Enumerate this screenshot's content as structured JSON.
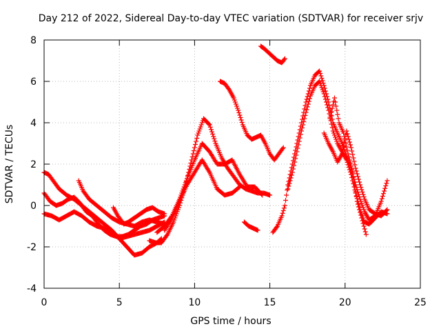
{
  "chart_data": {
    "type": "scatter",
    "title": "Day 212 of 2022, Sidereal Day-to-day VTEC variation (SDTVAR) for receiver srjv",
    "xlabel": "GPS time / hours",
    "ylabel": "SDTVAR / TECUs",
    "xlim": [
      0,
      25
    ],
    "ylim": [
      -4,
      8
    ],
    "xticks": [
      0,
      5,
      10,
      15,
      20,
      25
    ],
    "yticks": [
      -4,
      -2,
      0,
      2,
      4,
      6,
      8
    ],
    "grid": true,
    "marker": "+",
    "color": "#ff0000",
    "series": [
      {
        "name": "track-1",
        "x": [
          0.0,
          0.4,
          0.8,
          1.2,
          1.6,
          2.0,
          2.4,
          2.8,
          3.2,
          3.6,
          4.0,
          4.4,
          4.8,
          5.2,
          5.6,
          6.0,
          6.4,
          6.8,
          7.2,
          7.6,
          8.0
        ],
        "y": [
          0.6,
          0.2,
          0.0,
          0.1,
          0.3,
          0.4,
          0.1,
          -0.3,
          -0.5,
          -0.9,
          -1.2,
          -1.4,
          -1.5,
          -1.5,
          -1.4,
          -1.2,
          -1.0,
          -0.9,
          -0.7,
          -0.6,
          -0.5
        ]
      },
      {
        "name": "track-2",
        "x": [
          0.0,
          0.5,
          1.0,
          1.5,
          2.0,
          2.5,
          3.0,
          3.5,
          4.0,
          4.5,
          5.0,
          5.5,
          6.0,
          6.5,
          7.0,
          7.5,
          8.0
        ],
        "y": [
          -0.4,
          -0.5,
          -0.7,
          -0.5,
          -0.3,
          -0.5,
          -0.8,
          -1.0,
          -1.1,
          -1.3,
          -1.6,
          -1.5,
          -1.4,
          -1.3,
          -1.2,
          -1.0,
          -0.8
        ]
      },
      {
        "name": "track-3",
        "x": [
          0.0,
          0.3,
          0.6,
          1.0,
          1.5,
          2.0,
          2.5,
          3.0,
          3.5,
          4.0,
          4.5,
          5.0,
          5.5,
          6.0,
          6.5,
          7.0,
          7.5,
          7.8
        ],
        "y": [
          1.6,
          1.5,
          1.2,
          0.8,
          0.5,
          0.3,
          0.0,
          -0.3,
          -0.6,
          -0.9,
          -1.2,
          -1.6,
          -2.0,
          -2.4,
          -2.3,
          -2.0,
          -1.8,
          -1.6
        ]
      },
      {
        "name": "track-4",
        "x": [
          2.3,
          2.6,
          3.0,
          3.5,
          4.0,
          4.5,
          5.0,
          5.5,
          6.0,
          6.5,
          7.0,
          7.5,
          8.0
        ],
        "y": [
          1.2,
          0.7,
          0.3,
          0.0,
          -0.3,
          -0.6,
          -0.8,
          -0.9,
          -1.0,
          -0.8,
          -0.7,
          -0.8,
          -0.9
        ]
      },
      {
        "name": "track-5",
        "x": [
          4.6,
          4.9,
          5.3,
          5.6,
          6.0,
          6.4,
          6.8,
          7.2,
          7.6,
          8.0
        ],
        "y": [
          -0.1,
          -0.5,
          -0.9,
          -0.8,
          -0.6,
          -0.4,
          -0.2,
          -0.1,
          -0.3,
          -0.4
        ]
      },
      {
        "name": "track-6",
        "x": [
          7.0,
          7.4,
          7.8,
          8.2,
          8.6,
          9.0,
          9.4,
          9.8,
          10.2,
          10.6,
          11.0,
          11.4,
          11.8,
          12.2,
          12.6,
          13.0,
          13.4,
          13.8,
          14.2,
          14.6,
          15.0
        ],
        "y": [
          -1.7,
          -1.8,
          -1.8,
          -1.4,
          -0.8,
          0.0,
          1.0,
          2.2,
          3.4,
          4.2,
          3.9,
          3.0,
          2.3,
          1.8,
          1.4,
          1.0,
          0.8,
          0.7,
          0.6,
          0.6,
          0.5
        ]
      },
      {
        "name": "track-7",
        "x": [
          7.5,
          8.0,
          8.5,
          9.0,
          9.5,
          10.0,
          10.5,
          11.0,
          11.5,
          12.0,
          12.5,
          13.0,
          13.5,
          14.0,
          14.5
        ],
        "y": [
          -1.3,
          -1.0,
          -0.5,
          0.3,
          1.3,
          2.2,
          3.0,
          2.6,
          2.0,
          2.0,
          2.2,
          1.5,
          0.9,
          0.9,
          0.5
        ]
      },
      {
        "name": "track-8",
        "x": [
          8.0,
          8.5,
          9.0,
          9.5,
          10.0,
          10.5,
          11.0,
          11.5,
          12.0,
          12.5,
          13.0
        ],
        "y": [
          -1.2,
          -0.6,
          0.2,
          1.0,
          1.6,
          2.2,
          1.6,
          0.8,
          0.5,
          0.6,
          0.9
        ]
      },
      {
        "name": "track-9",
        "x": [
          11.7,
          12.0,
          12.3,
          12.6,
          12.9,
          13.2,
          13.5,
          13.8,
          14.1,
          14.4,
          14.7,
          15.0,
          15.3,
          15.6,
          15.9
        ],
        "y": [
          6.0,
          5.9,
          5.6,
          5.2,
          4.6,
          3.9,
          3.4,
          3.2,
          3.3,
          3.4,
          3.0,
          2.5,
          2.2,
          2.5,
          2.8
        ]
      },
      {
        "name": "track-10",
        "x": [
          14.4,
          14.6,
          14.9,
          15.2,
          15.5,
          15.8,
          16.0
        ],
        "y": [
          7.7,
          7.6,
          7.4,
          7.2,
          7.0,
          6.9,
          7.1
        ]
      },
      {
        "name": "track-11",
        "x": [
          13.3,
          13.6,
          13.9,
          14.2
        ],
        "y": [
          -0.8,
          -1.0,
          -1.1,
          -1.2
        ]
      },
      {
        "name": "track-12",
        "x": [
          15.2,
          15.5,
          15.8,
          16.0,
          16.2,
          16.5,
          16.8,
          17.1,
          17.4,
          17.7,
          18.0,
          18.3,
          18.6,
          18.9,
          19.2,
          19.5,
          19.8,
          20.1,
          20.4,
          20.7,
          21.0,
          21.3,
          21.6,
          22.0,
          22.4,
          22.8
        ],
        "y": [
          -1.3,
          -1.0,
          -0.5,
          0.0,
          1.0,
          2.0,
          3.0,
          4.0,
          5.0,
          5.8,
          6.3,
          6.5,
          5.8,
          5.0,
          4.0,
          3.5,
          3.0,
          2.4,
          1.8,
          1.0,
          0.3,
          -0.3,
          -0.7,
          -0.5,
          0.2,
          1.2
        ]
      },
      {
        "name": "track-13",
        "x": [
          16.2,
          16.5,
          16.8,
          17.1,
          17.4,
          17.7,
          18.0,
          18.3,
          18.6,
          18.9,
          19.2,
          19.5,
          19.8,
          20.1,
          20.4,
          20.7,
          21.0,
          21.3,
          21.6,
          22.0,
          22.4,
          22.8
        ],
        "y": [
          0.8,
          1.6,
          2.6,
          3.6,
          4.5,
          5.3,
          5.8,
          6.0,
          5.4,
          4.6,
          3.6,
          3.0,
          2.6,
          2.2,
          1.5,
          0.6,
          -0.2,
          -0.8,
          -0.9,
          -0.6,
          -0.3,
          -0.4
        ]
      },
      {
        "name": "track-14",
        "x": [
          19.0,
          19.3,
          19.6,
          19.9,
          20.2,
          20.5,
          20.8,
          21.1,
          21.4
        ],
        "y": [
          4.2,
          5.2,
          4.0,
          3.5,
          2.5,
          1.6,
          0.2,
          -0.6,
          -1.4
        ]
      },
      {
        "name": "track-15",
        "x": [
          18.6,
          18.9,
          19.2,
          19.5,
          19.8,
          20.1,
          20.4,
          20.7,
          21.0,
          21.3,
          21.6,
          22.0,
          22.4,
          22.8
        ],
        "y": [
          3.5,
          3.0,
          2.6,
          2.1,
          2.5,
          3.6,
          2.8,
          1.8,
          1.0,
          0.3,
          -0.2,
          -0.4,
          -0.5,
          -0.2
        ]
      }
    ]
  }
}
